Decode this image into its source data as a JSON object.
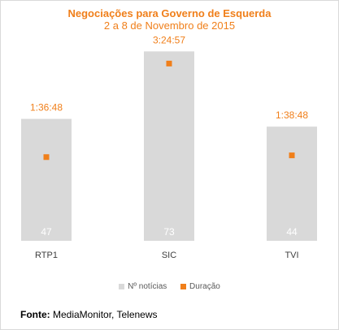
{
  "chart_data": {
    "type": "bar",
    "title": "Negociações para Governo de Esquerda",
    "subtitle": "2 a 8 de Novembro de 2015",
    "categories": [
      "RTP1",
      "SIC",
      "TVI"
    ],
    "series": [
      {
        "name": "Nº notícias",
        "values": [
          47,
          73,
          44
        ],
        "color": "#d9d9d9",
        "label_color": "#ffffff"
      },
      {
        "name": "Duração",
        "values": [
          5808,
          12297,
          5928
        ],
        "value_labels": [
          "1:36:48",
          "3:24:57",
          "1:38:48"
        ],
        "color": "#f07f1a",
        "marker": "square"
      }
    ],
    "ylim": [
      0,
      80
    ],
    "duration_ylim_seconds": [
      0,
      14400
    ],
    "grid": false,
    "legend": "bottom"
  },
  "source": {
    "label": "Fonte:",
    "text": "MediaMonitor, Telenews"
  }
}
